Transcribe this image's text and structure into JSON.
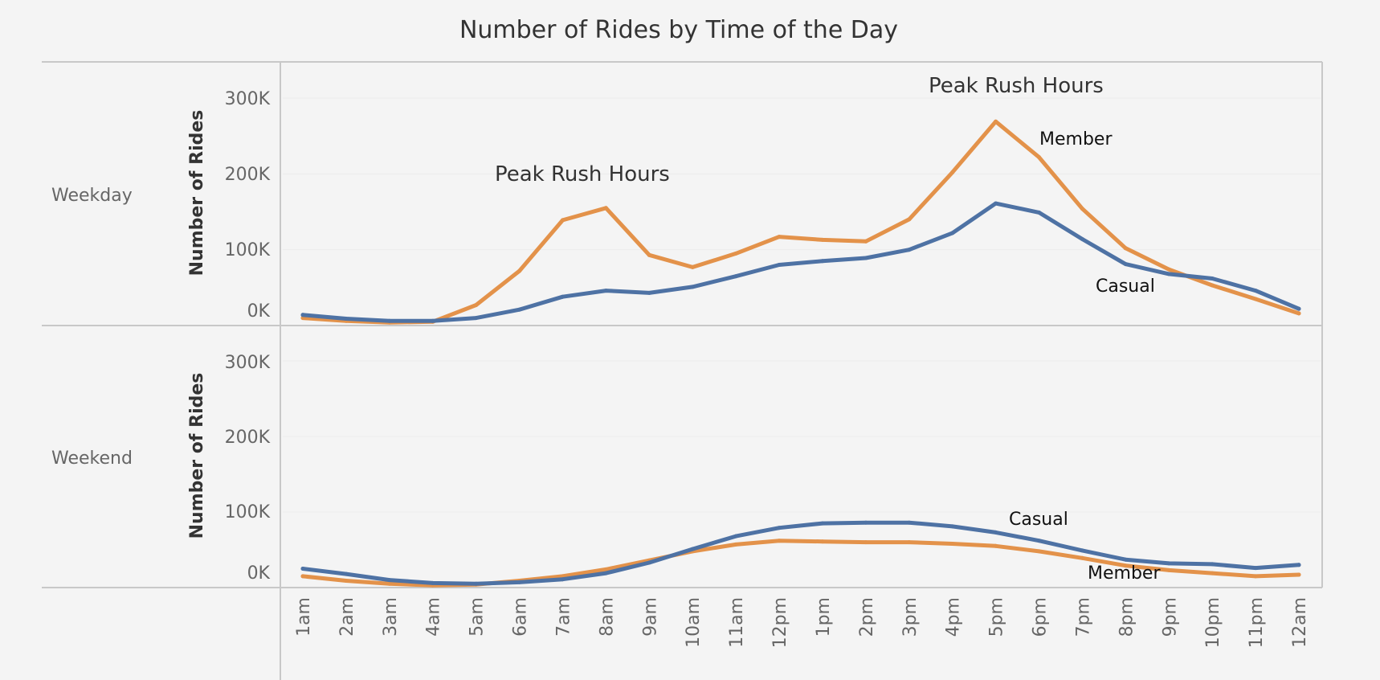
{
  "chart_data": {
    "type": "line",
    "title": "Number of Rides by Time of the Day",
    "categories": [
      "1am",
      "2am",
      "3am",
      "4am",
      "5am",
      "6am",
      "7am",
      "8am",
      "9am",
      "10am",
      "11am",
      "12pm",
      "1pm",
      "2pm",
      "3pm",
      "4pm",
      "5pm",
      "6pm",
      "7pm",
      "8pm",
      "9pm",
      "10pm",
      "11pm",
      "12am"
    ],
    "y_ticks": [
      "0K",
      "100K",
      "200K",
      "300K"
    ],
    "ylim": [
      0,
      300000
    ],
    "colors": {
      "Member": "#e3924a",
      "Casual": "#4e72a4"
    },
    "panels": [
      {
        "name": "Weekday",
        "ylabel": "Number of Rides",
        "series": [
          {
            "name": "Member",
            "values": [
              10000,
              6000,
              4000,
              5000,
              27000,
              72000,
              139000,
              155000,
              93000,
              77000,
              95000,
              117000,
              113000,
              111000,
              140000,
              202000,
              269000,
              222000,
              154000,
              102000,
              74000,
              53000,
              35000,
              16000
            ]
          },
          {
            "name": "Casual",
            "values": [
              14000,
              9000,
              6000,
              6000,
              10000,
              21000,
              38000,
              46000,
              43000,
              51000,
              65000,
              80000,
              85000,
              89000,
              100000,
              122000,
              161000,
              149000,
              114000,
              81000,
              68000,
              62000,
              46000,
              22000
            ]
          }
        ],
        "annotations": [
          "Peak Rush Hours",
          "Peak Rush Hours"
        ],
        "series_labels": {
          "member": "Member",
          "casual": "Casual"
        }
      },
      {
        "name": "Weekend",
        "ylabel": "Number of Rides",
        "series": [
          {
            "name": "Member",
            "values": [
              15000,
              9000,
              5000,
              3000,
              4000,
              9000,
              15000,
              24000,
              36000,
              48000,
              57000,
              62000,
              61000,
              60000,
              60000,
              58000,
              55000,
              48000,
              39000,
              29000,
              23000,
              19000,
              15000,
              17000
            ]
          },
          {
            "name": "Casual",
            "values": [
              25000,
              18000,
              10000,
              6000,
              5000,
              7000,
              11000,
              19000,
              33000,
              51000,
              68000,
              79000,
              85000,
              86000,
              86000,
              81000,
              73000,
              62000,
              49000,
              37000,
              32000,
              31000,
              26000,
              30000
            ]
          }
        ],
        "series_labels": {
          "member": "Member",
          "casual": "Casual"
        }
      }
    ]
  }
}
